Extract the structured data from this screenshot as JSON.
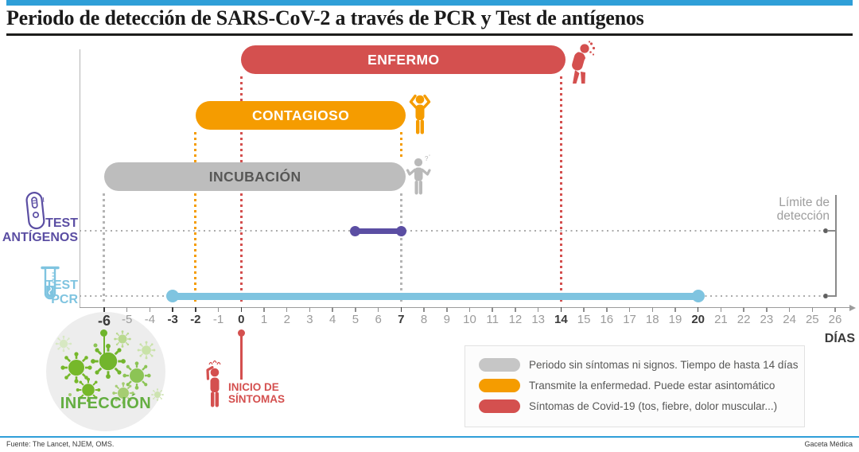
{
  "page": {
    "title": "Periodo de detección de SARS-CoV-2 a través de PCR y Test de antígenos",
    "footer_source": "Fuente: The Lancet, NJEM, OMS.",
    "footer_brand": "Gaceta Médica"
  },
  "colors": {
    "accent_blue": "#2f9fd8",
    "red": "#d4504f",
    "orange": "#f59c00",
    "gray": "#bdbdbd",
    "purple": "#5b4ea3",
    "light_blue": "#7fc4e0",
    "green": "#6eb52c",
    "axis_gray": "#9c9c9c",
    "muted_tick": "#9b9b9b",
    "dark_tick": "#3a3a3a",
    "limit_gray": "#9e9e9e"
  },
  "chart_data": {
    "type": "timeline",
    "xlabel": "DÍAS",
    "x_range": [
      -6,
      26
    ],
    "emphasized_ticks": [
      -6,
      -3,
      -2,
      0,
      7,
      14,
      20
    ],
    "phases": [
      {
        "id": "enfermo",
        "label": "ENFERMO",
        "start": 0,
        "end": 14,
        "color": "#d4504f",
        "text_color": "#ffffff"
      },
      {
        "id": "contagioso",
        "label": "CONTAGIOSO",
        "start": -2,
        "end": 7,
        "color": "#f59c00",
        "text_color": "#ffffff"
      },
      {
        "id": "incubacion",
        "label": "INCUBACIÓN",
        "start": -6,
        "end": 7,
        "color": "#bdbdbd",
        "text_color": "#575756"
      }
    ],
    "tests": [
      {
        "id": "antigenos",
        "label_lines": [
          "TEST",
          "ANTÍGENOS"
        ],
        "detect_start": 5,
        "detect_end": 7,
        "color": "#5b4ea3"
      },
      {
        "id": "pcr",
        "label_lines": [
          "TEST",
          "PCR"
        ],
        "detect_start": -3,
        "detect_end": 20,
        "color": "#7fc4e0"
      }
    ],
    "markers": [
      {
        "id": "infeccion",
        "day": -6,
        "label": "INFECCIÓN",
        "color": "#6eb52c"
      },
      {
        "id": "inicio-sintomas",
        "day": 0,
        "label_lines": [
          "INICIO DE",
          "SÍNTOMAS"
        ],
        "color": "#d4504f"
      }
    ],
    "limit_of_detection": {
      "label_lines": [
        "Límite de",
        "detección"
      ],
      "applies_to": [
        "antigenos",
        "pcr"
      ]
    }
  },
  "legend": {
    "items": [
      {
        "color": "#c6c6c6",
        "text": "Periodo sin síntomas ni signos. Tiempo de hasta 14 días"
      },
      {
        "color": "#f59c00",
        "text": "Transmite la enfermedad. Puede estar asintomático"
      },
      {
        "color": "#d4504f",
        "text": "Síntomas de Covid-19 (tos, fiebre, dolor muscular...)"
      }
    ]
  },
  "icons": {
    "antigen_test": "antigen-test-cassette-icon",
    "pcr_test": "pcr-test-tube-icon",
    "enfermo": "coughing-sick-person-icon",
    "contagioso": "standing-person-icon",
    "incubacion": "shrugging-person-icon",
    "inicio_sintomas": "fever-person-icon",
    "infeccion": "coronavirus-icon"
  }
}
